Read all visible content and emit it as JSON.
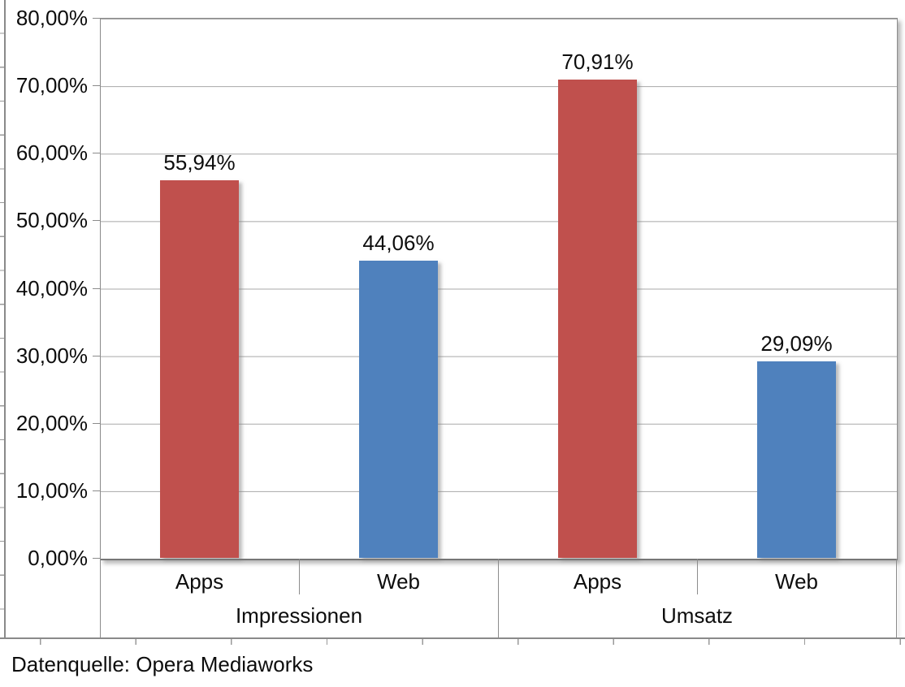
{
  "chart_data": {
    "type": "bar",
    "title": "",
    "y_axis": {
      "ticks": [
        "80,00%",
        "70,00%",
        "60,00%",
        "50,00%",
        "40,00%",
        "30,00%",
        "20,00%",
        "10,00%",
        "0,00%"
      ],
      "min": 0,
      "max": 80,
      "grid": true
    },
    "legend": "none",
    "series_colors": {
      "Apps": "#C0504D",
      "Web": "#4F81BD"
    },
    "groups": [
      {
        "label": "Impressionen",
        "bars": [
          {
            "category": "Apps",
            "series": "Apps",
            "value": 55.94,
            "label": "55,94%"
          },
          {
            "category": "Web",
            "series": "Web",
            "value": 44.06,
            "label": "44,06%"
          }
        ]
      },
      {
        "label": "Umsatz",
        "bars": [
          {
            "category": "Apps",
            "series": "Apps",
            "value": 70.91,
            "label": "70,91%"
          },
          {
            "category": "Web",
            "series": "Web",
            "value": 29.09,
            "label": "29,09%"
          }
        ]
      }
    ]
  },
  "source_note": "Datenquelle: Opera Mediaworks"
}
